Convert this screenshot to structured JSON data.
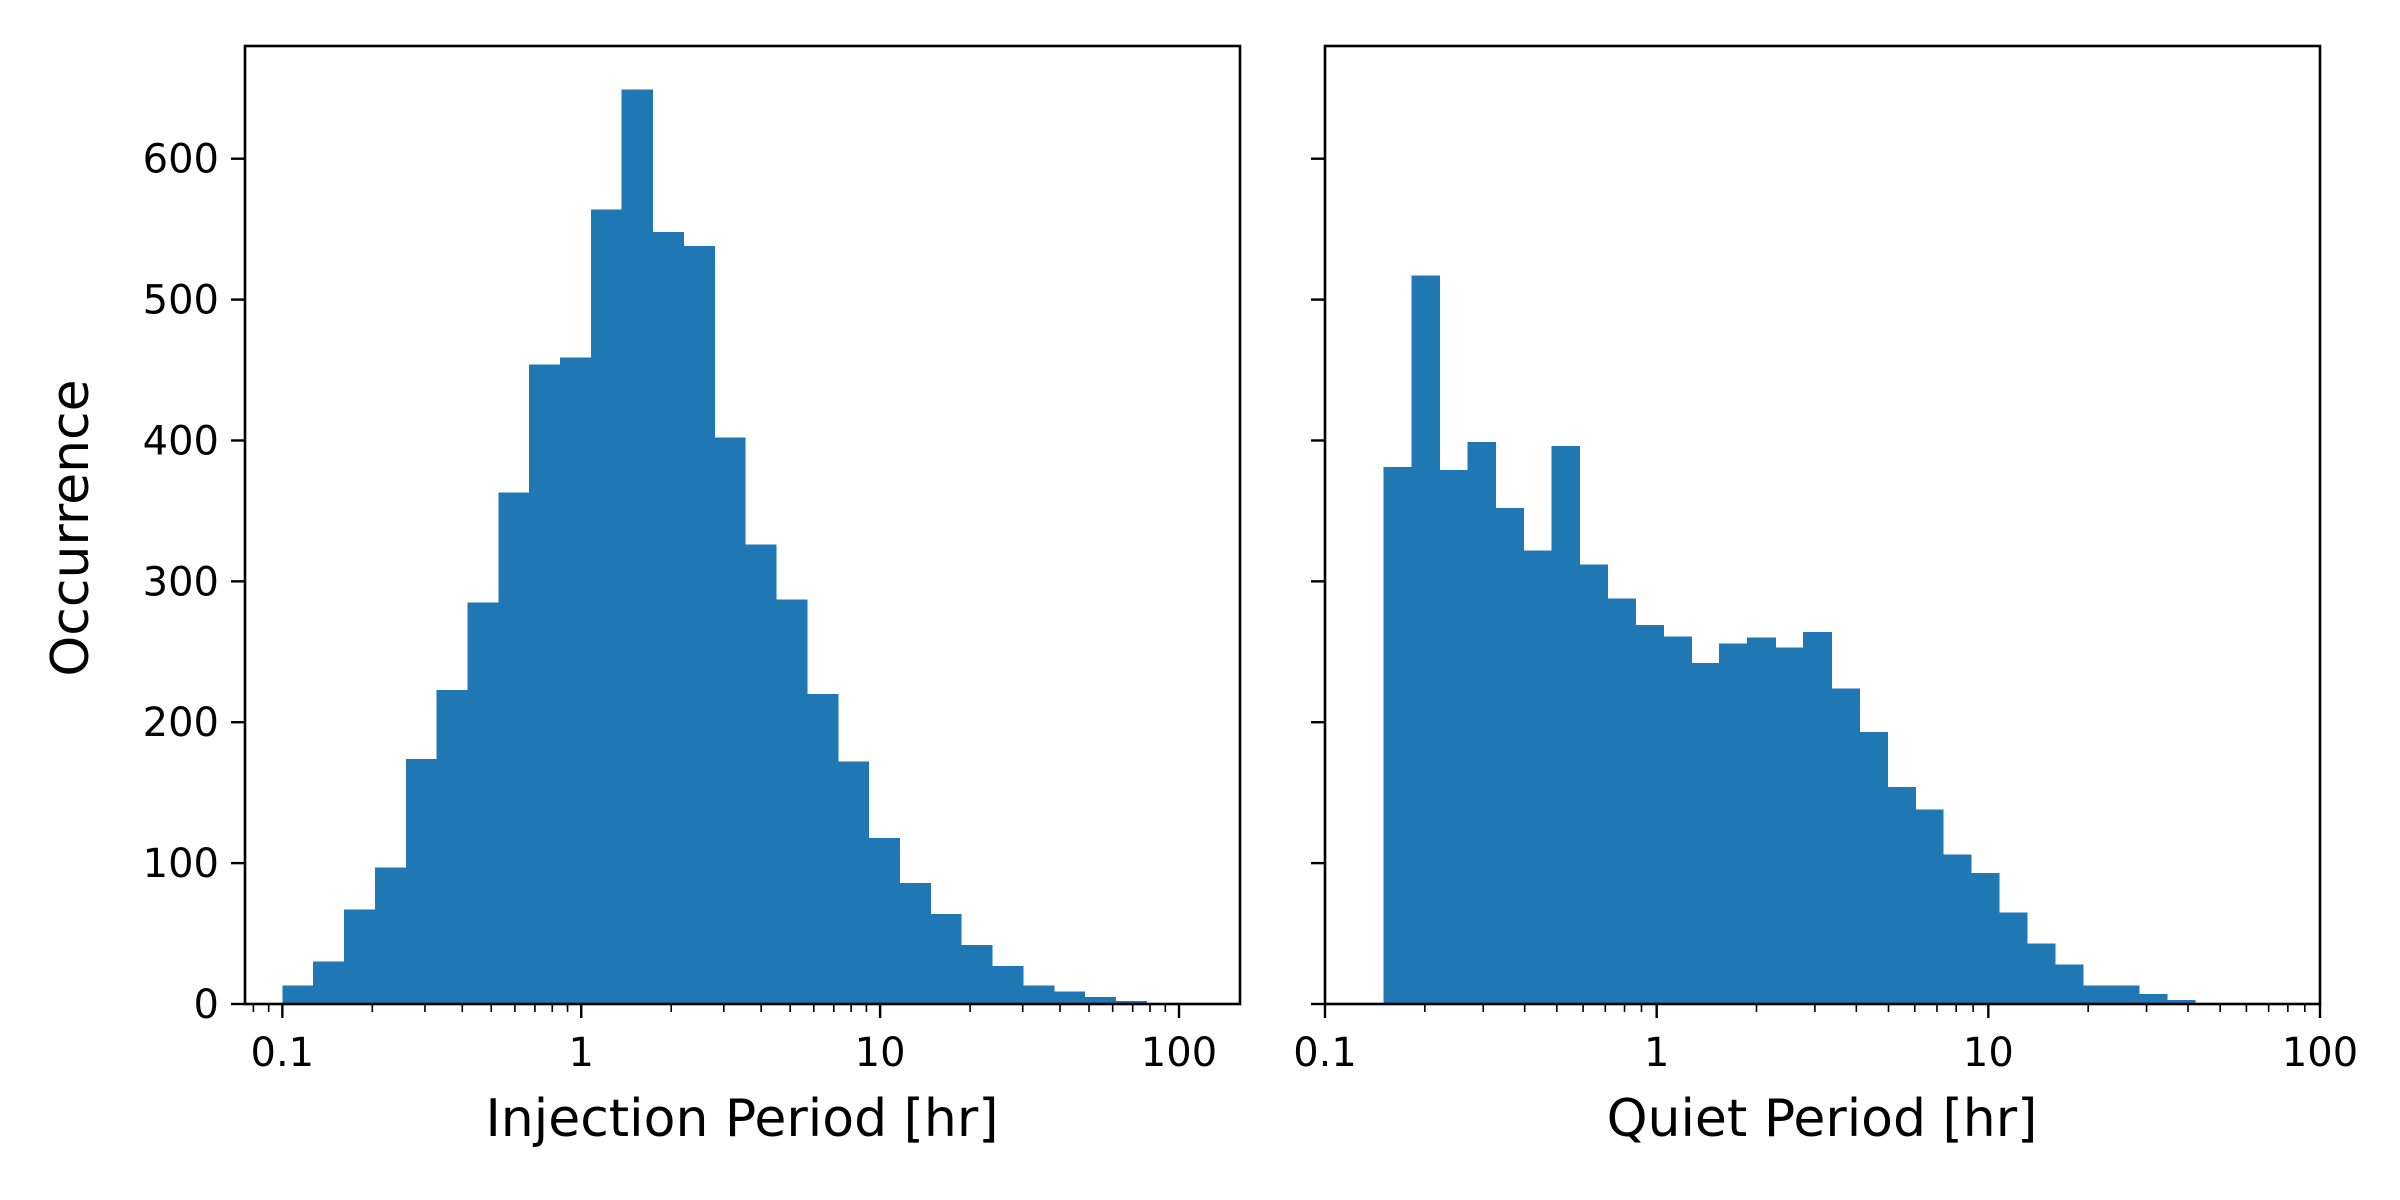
{
  "chart_data": [
    {
      "type": "bar",
      "panel": "left",
      "xscale": "log",
      "xlabel": "Injection Period [hr]",
      "ylabel": "Occurrence",
      "xlim": [
        0.075,
        160
      ],
      "ylim": [
        0,
        680
      ],
      "xticks": [
        {
          "value": 0.1,
          "label": "0.1"
        },
        {
          "value": 1,
          "label": "1"
        },
        {
          "value": 10,
          "label": "10"
        },
        {
          "value": 100,
          "label": "100"
        }
      ],
      "yticks": [
        {
          "value": 0,
          "label": "0"
        },
        {
          "value": 100,
          "label": "100"
        },
        {
          "value": 200,
          "label": "200"
        },
        {
          "value": 300,
          "label": "300"
        },
        {
          "value": 400,
          "label": "400"
        },
        {
          "value": 500,
          "label": "500"
        },
        {
          "value": 600,
          "label": "600"
        }
      ],
      "bin_range": [
        0.1,
        125
      ],
      "counts": [
        13,
        30,
        67,
        97,
        174,
        223,
        285,
        363,
        454,
        459,
        564,
        649,
        548,
        538,
        402,
        326,
        287,
        220,
        172,
        118,
        86,
        64,
        42,
        27,
        13,
        9,
        5,
        2,
        0,
        0
      ],
      "bar_color": "#1f77b4"
    },
    {
      "type": "bar",
      "panel": "right",
      "xscale": "log",
      "xlabel": "Quiet Period [hr]",
      "ylabel": "",
      "xlim": [
        0.1,
        100
      ],
      "ylim": [
        0,
        680
      ],
      "xticks": [
        {
          "value": 0.1,
          "label": "0.1"
        },
        {
          "value": 1,
          "label": "1"
        },
        {
          "value": 10,
          "label": "10"
        },
        {
          "value": 100,
          "label": "100"
        }
      ],
      "yticks": [
        {
          "value": 0,
          "label": ""
        },
        {
          "value": 100,
          "label": ""
        },
        {
          "value": 200,
          "label": ""
        },
        {
          "value": 300,
          "label": ""
        },
        {
          "value": 400,
          "label": ""
        },
        {
          "value": 500,
          "label": ""
        },
        {
          "value": 600,
          "label": ""
        }
      ],
      "bin_range": [
        0.15,
        51
      ],
      "counts": [
        381,
        517,
        379,
        399,
        352,
        322,
        396,
        312,
        288,
        269,
        261,
        242,
        256,
        260,
        253,
        264,
        224,
        193,
        154,
        138,
        106,
        93,
        65,
        43,
        28,
        13,
        13,
        7,
        3,
        0
      ],
      "bar_color": "#1f77b4"
    }
  ]
}
